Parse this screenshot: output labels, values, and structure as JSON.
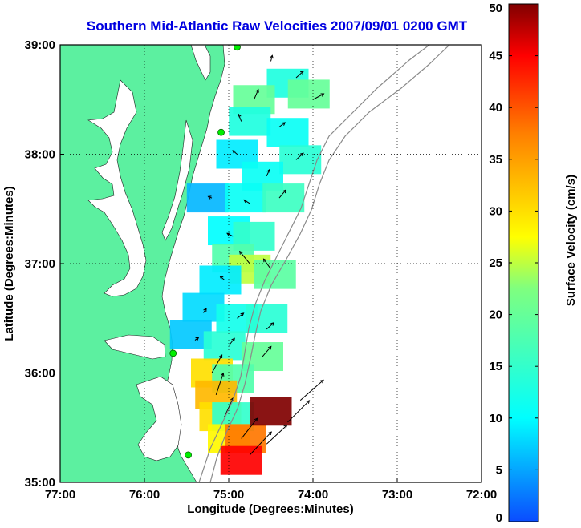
{
  "chart_data": {
    "type": "heatmap",
    "title": "Southern Mid-Atlantic Raw Velocities 2007/09/01 0200 GMT",
    "xlabel": "Longitude (Degrees:Minutes)",
    "ylabel": "Latitude (Degrees:Minutes)",
    "xlim": [
      -77,
      -72
    ],
    "ylim": [
      35,
      39
    ],
    "x_ticks": [
      -77,
      -76,
      -75,
      -74,
      -73,
      -72
    ],
    "x_tick_labels": [
      "77:00",
      "76:00",
      "75:00",
      "74:00",
      "73:00",
      "72:00"
    ],
    "y_ticks": [
      35,
      36,
      37,
      38,
      39
    ],
    "y_tick_labels": [
      "35:00",
      "36:00",
      "37:00",
      "38:00",
      "39:00"
    ],
    "grid": true,
    "colorbar": {
      "label": "Surface Velocity (cm/s)",
      "min": 0,
      "max": 50,
      "ticks": [
        0,
        5,
        10,
        15,
        20,
        25,
        30,
        35,
        40,
        45,
        50
      ]
    },
    "colors": {
      "land": "#5cf0a0",
      "title": "#0000e0",
      "stations": "#00ee00",
      "contour": "#8a8a8a"
    },
    "stations": [
      {
        "lon": -74.9,
        "lat": 38.98
      },
      {
        "lon": -75.09,
        "lat": 38.2
      },
      {
        "lon": -75.66,
        "lat": 36.18
      },
      {
        "lon": -75.48,
        "lat": 35.25
      }
    ],
    "velocity_regions": [
      {
        "lon": -74.3,
        "lat": 38.65,
        "speed": 13
      },
      {
        "lon": -74.05,
        "lat": 38.55,
        "speed": 20
      },
      {
        "lon": -74.7,
        "lat": 38.5,
        "speed": 20
      },
      {
        "lon": -74.75,
        "lat": 38.3,
        "speed": 13
      },
      {
        "lon": -74.3,
        "lat": 38.2,
        "speed": 11
      },
      {
        "lon": -74.9,
        "lat": 38.0,
        "speed": 9
      },
      {
        "lon": -74.15,
        "lat": 37.95,
        "speed": 14
      },
      {
        "lon": -74.6,
        "lat": 37.8,
        "speed": 11
      },
      {
        "lon": -75.25,
        "lat": 37.6,
        "speed": 6
      },
      {
        "lon": -74.8,
        "lat": 37.6,
        "speed": 11
      },
      {
        "lon": -74.35,
        "lat": 37.6,
        "speed": 16
      },
      {
        "lon": -75.0,
        "lat": 37.3,
        "speed": 10
      },
      {
        "lon": -74.7,
        "lat": 37.25,
        "speed": 15
      },
      {
        "lon": -74.95,
        "lat": 37.05,
        "speed": 18
      },
      {
        "lon": -74.75,
        "lat": 36.95,
        "speed": 25
      },
      {
        "lon": -75.1,
        "lat": 36.85,
        "speed": 9
      },
      {
        "lon": -74.45,
        "lat": 36.9,
        "speed": 19
      },
      {
        "lon": -75.3,
        "lat": 36.6,
        "speed": 8
      },
      {
        "lon": -74.9,
        "lat": 36.5,
        "speed": 12
      },
      {
        "lon": -74.55,
        "lat": 36.5,
        "speed": 14
      },
      {
        "lon": -75.45,
        "lat": 36.35,
        "speed": 7
      },
      {
        "lon": -75.05,
        "lat": 36.25,
        "speed": 14
      },
      {
        "lon": -74.6,
        "lat": 36.15,
        "speed": 20
      },
      {
        "lon": -75.2,
        "lat": 36.0,
        "speed": 30
      },
      {
        "lon": -74.95,
        "lat": 35.95,
        "speed": 18
      },
      {
        "lon": -75.15,
        "lat": 35.8,
        "speed": 33
      },
      {
        "lon": -75.1,
        "lat": 35.6,
        "speed": 30
      },
      {
        "lon": -74.95,
        "lat": 35.6,
        "speed": 15
      },
      {
        "lon": -75.0,
        "lat": 35.4,
        "speed": 28
      },
      {
        "lon": -74.8,
        "lat": 35.4,
        "speed": 38
      },
      {
        "lon": -74.85,
        "lat": 35.2,
        "speed": 45
      },
      {
        "lon": -74.5,
        "lat": 35.65,
        "speed": 50
      }
    ],
    "vectors": [
      {
        "lon": -74.5,
        "lat": 38.85,
        "u": 2,
        "v": 8
      },
      {
        "lon": -74.2,
        "lat": 38.7,
        "u": 10,
        "v": 9
      },
      {
        "lon": -74.0,
        "lat": 38.5,
        "u": 15,
        "v": 8
      },
      {
        "lon": -74.7,
        "lat": 38.5,
        "u": 6,
        "v": 14
      },
      {
        "lon": -74.85,
        "lat": 38.3,
        "u": -4,
        "v": 10
      },
      {
        "lon": -74.4,
        "lat": 38.25,
        "u": 8,
        "v": 6
      },
      {
        "lon": -74.9,
        "lat": 38.0,
        "u": -6,
        "v": 5
      },
      {
        "lon": -74.2,
        "lat": 37.95,
        "u": 10,
        "v": 9
      },
      {
        "lon": -74.55,
        "lat": 37.8,
        "u": 4,
        "v": 9
      },
      {
        "lon": -75.2,
        "lat": 37.6,
        "u": -5,
        "v": 2
      },
      {
        "lon": -74.75,
        "lat": 37.55,
        "u": -8,
        "v": 5
      },
      {
        "lon": -74.4,
        "lat": 37.6,
        "u": 9,
        "v": 11
      },
      {
        "lon": -74.95,
        "lat": 37.25,
        "u": -8,
        "v": 4
      },
      {
        "lon": -74.75,
        "lat": 37.0,
        "u": -14,
        "v": 17
      },
      {
        "lon": -74.5,
        "lat": 36.95,
        "u": -10,
        "v": 14
      },
      {
        "lon": -75.05,
        "lat": 36.85,
        "u": -6,
        "v": 5
      },
      {
        "lon": -75.3,
        "lat": 36.55,
        "u": 4,
        "v": 6
      },
      {
        "lon": -74.9,
        "lat": 36.5,
        "u": 9,
        "v": 7
      },
      {
        "lon": -74.55,
        "lat": 36.4,
        "u": 10,
        "v": 9
      },
      {
        "lon": -75.4,
        "lat": 36.3,
        "u": 5,
        "v": 4
      },
      {
        "lon": -75.0,
        "lat": 36.25,
        "u": 8,
        "v": 10
      },
      {
        "lon": -74.6,
        "lat": 36.15,
        "u": 12,
        "v": 14
      },
      {
        "lon": -75.2,
        "lat": 36.0,
        "u": 14,
        "v": 25
      },
      {
        "lon": -75.15,
        "lat": 35.8,
        "u": 10,
        "v": 30
      },
      {
        "lon": -75.05,
        "lat": 35.6,
        "u": 12,
        "v": 26
      },
      {
        "lon": -74.85,
        "lat": 35.4,
        "u": 22,
        "v": 28
      },
      {
        "lon": -74.75,
        "lat": 35.25,
        "u": 30,
        "v": 32
      },
      {
        "lon": -74.55,
        "lat": 35.35,
        "u": 28,
        "v": 26
      },
      {
        "lon": -74.3,
        "lat": 35.55,
        "u": 30,
        "v": 30
      },
      {
        "lon": -74.15,
        "lat": 35.75,
        "u": 32,
        "v": 28
      }
    ]
  }
}
